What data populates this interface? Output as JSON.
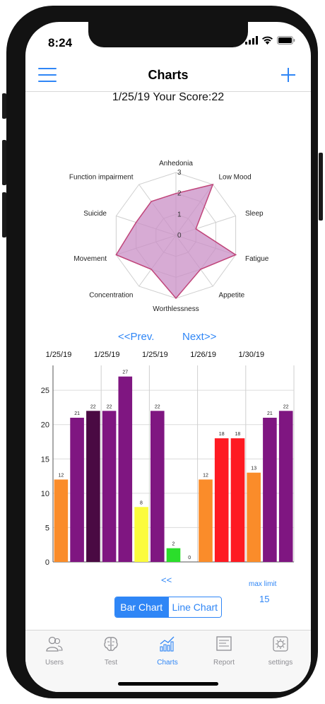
{
  "status": {
    "time": "8:24"
  },
  "nav": {
    "title": "Charts"
  },
  "score_line": "1/25/19 Your Score:22",
  "chart_data": [
    {
      "type": "radar",
      "categories": [
        "Anhedonia",
        "Low Mood",
        "Sleep",
        "Fatigue",
        "Appetite",
        "Worthlessness",
        "Concentration",
        "Movement",
        "Suicide",
        "Function impairment"
      ],
      "values": [
        2,
        3,
        1,
        3,
        2,
        3,
        2,
        3,
        2,
        2
      ],
      "rlim": [
        0,
        3
      ],
      "ticks": [
        "0",
        "1",
        "2",
        "3"
      ],
      "fill_color": "#c98fc5",
      "line_color": "#c0457a"
    },
    {
      "type": "bar",
      "x_labels": [
        "1/25/19",
        "1/25/19",
        "1/25/19",
        "1/26/19",
        "1/30/19"
      ],
      "values": [
        12,
        21,
        22,
        22,
        27,
        8,
        22,
        2,
        0,
        12,
        18,
        18,
        13,
        21,
        22
      ],
      "colors": [
        "#fa8c2a",
        "#7f1681",
        "#4a0a43",
        "#7f1681",
        "#7f1681",
        "#fbfb3c",
        "#7f1681",
        "#2bde2b",
        "#7f1681",
        "#fa8c2a",
        "#fe1a22",
        "#fe1a22",
        "#fa8c2a",
        "#7f1681",
        "#7f1681"
      ],
      "ylim": [
        0,
        28
      ],
      "yticks": [
        0,
        5,
        10,
        15,
        20,
        25
      ],
      "grid": true
    }
  ],
  "pager": {
    "prev": "<<Prev.",
    "next": "Next>>"
  },
  "collapse_label": "<<",
  "max_limit": {
    "label": "max limit",
    "value": "15"
  },
  "chart_toggle": {
    "bar": "Bar Chart",
    "line": "Line Chart"
  },
  "tabs": [
    {
      "label": "Users",
      "icon": "users-icon"
    },
    {
      "label": "Test",
      "icon": "brain-icon"
    },
    {
      "label": "Charts",
      "icon": "bar-chart-icon"
    },
    {
      "label": "Report",
      "icon": "report-icon"
    },
    {
      "label": "settings",
      "icon": "gear-icon"
    }
  ],
  "colors": {
    "accent": "#2f86f6",
    "tab_inactive": "#8e8e93"
  }
}
